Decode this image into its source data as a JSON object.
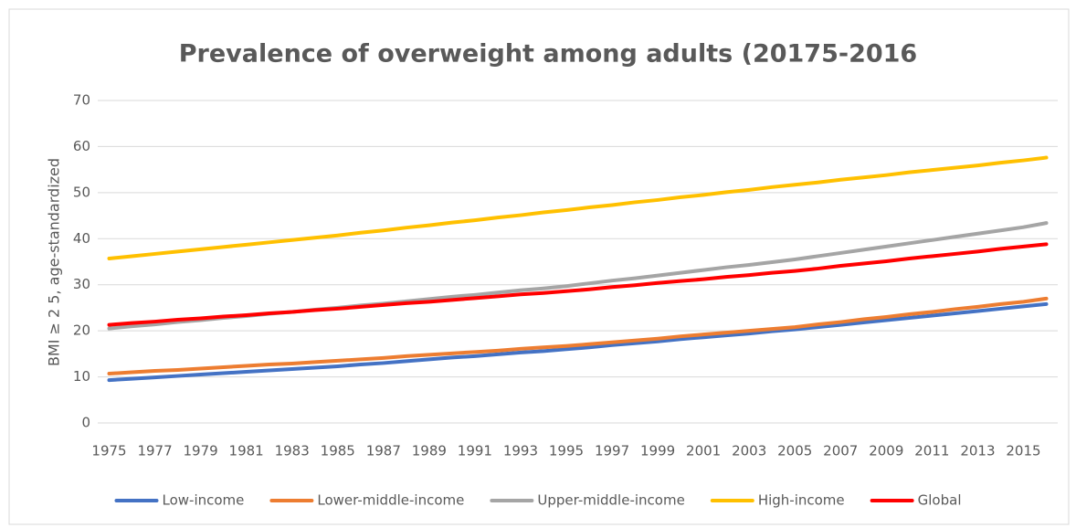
{
  "chart_data": {
    "type": "line",
    "title": "Prevalence of overweight among adults (20175-2016",
    "y_label": "BMI ≥ 2 5, age-standardized",
    "categories": [
      1975,
      null,
      1977,
      null,
      1979,
      null,
      1981,
      null,
      1983,
      null,
      1985,
      null,
      1987,
      null,
      1989,
      null,
      1991,
      null,
      1993,
      null,
      1995,
      null,
      1997,
      null,
      1999,
      null,
      2001,
      null,
      2003,
      null,
      2005,
      null,
      2007,
      null,
      2009,
      null,
      2011,
      null,
      2013,
      null,
      2015,
      null
    ],
    "series": [
      {
        "name": "Low-income",
        "color": "#4472c4",
        "values": [
          9.3,
          9.6,
          9.9,
          10.2,
          10.5,
          10.8,
          11.1,
          11.4,
          11.7,
          12.0,
          12.3,
          12.7,
          13.0,
          13.4,
          13.8,
          14.2,
          14.5,
          14.9,
          15.3,
          15.6,
          16.0,
          16.4,
          16.9,
          17.3,
          17.7,
          18.2,
          18.6,
          19.0,
          19.4,
          19.9,
          20.3,
          20.8,
          21.3,
          21.8,
          22.3,
          22.8,
          23.3,
          23.8,
          24.3,
          24.8,
          25.3,
          25.8
        ]
      },
      {
        "name": "Lower-middle-income",
        "color": "#ed7d31",
        "values": [
          10.7,
          11.0,
          11.3,
          11.5,
          11.8,
          12.1,
          12.4,
          12.7,
          12.9,
          13.2,
          13.5,
          13.8,
          14.1,
          14.5,
          14.8,
          15.1,
          15.4,
          15.7,
          16.1,
          16.4,
          16.7,
          17.1,
          17.5,
          17.9,
          18.3,
          18.8,
          19.2,
          19.6,
          20.0,
          20.4,
          20.8,
          21.4,
          21.9,
          22.5,
          23.0,
          23.6,
          24.1,
          24.7,
          25.2,
          25.8,
          26.3,
          27.0
        ]
      },
      {
        "name": "Upper-middle-income",
        "color": "#a5a5a5",
        "values": [
          20.5,
          21.0,
          21.4,
          21.9,
          22.3,
          22.8,
          23.2,
          23.7,
          24.1,
          24.6,
          25.0,
          25.5,
          25.9,
          26.4,
          26.9,
          27.4,
          27.8,
          28.3,
          28.8,
          29.2,
          29.7,
          30.3,
          30.9,
          31.4,
          32.0,
          32.6,
          33.2,
          33.8,
          34.3,
          34.9,
          35.5,
          36.2,
          36.9,
          37.6,
          38.3,
          39.0,
          39.7,
          40.4,
          41.1,
          41.8,
          42.5,
          43.4
        ]
      },
      {
        "name": "High-income",
        "color": "#ffc000",
        "values": [
          35.7,
          36.2,
          36.7,
          37.2,
          37.7,
          38.2,
          38.7,
          39.2,
          39.7,
          40.2,
          40.7,
          41.3,
          41.8,
          42.4,
          42.9,
          43.5,
          44.0,
          44.6,
          45.1,
          45.7,
          46.2,
          46.8,
          47.3,
          47.9,
          48.4,
          49.0,
          49.5,
          50.1,
          50.6,
          51.2,
          51.7,
          52.2,
          52.8,
          53.3,
          53.8,
          54.4,
          54.9,
          55.4,
          55.9,
          56.5,
          57.0,
          57.6
        ]
      },
      {
        "name": "Global",
        "color": "#ff0000",
        "values": [
          21.3,
          21.7,
          22.0,
          22.4,
          22.7,
          23.1,
          23.4,
          23.8,
          24.1,
          24.5,
          24.8,
          25.2,
          25.6,
          26.0,
          26.3,
          26.7,
          27.1,
          27.5,
          27.9,
          28.2,
          28.6,
          29.0,
          29.5,
          29.9,
          30.4,
          30.8,
          31.2,
          31.7,
          32.1,
          32.6,
          33.0,
          33.5,
          34.1,
          34.6,
          35.1,
          35.7,
          36.2,
          36.7,
          37.2,
          37.8,
          38.3,
          38.8
        ]
      }
    ],
    "ylim": [
      0,
      70
    ],
    "yticks": [
      0,
      10,
      20,
      30,
      40,
      50,
      60,
      70
    ],
    "grid": true,
    "legend": "bottom"
  }
}
